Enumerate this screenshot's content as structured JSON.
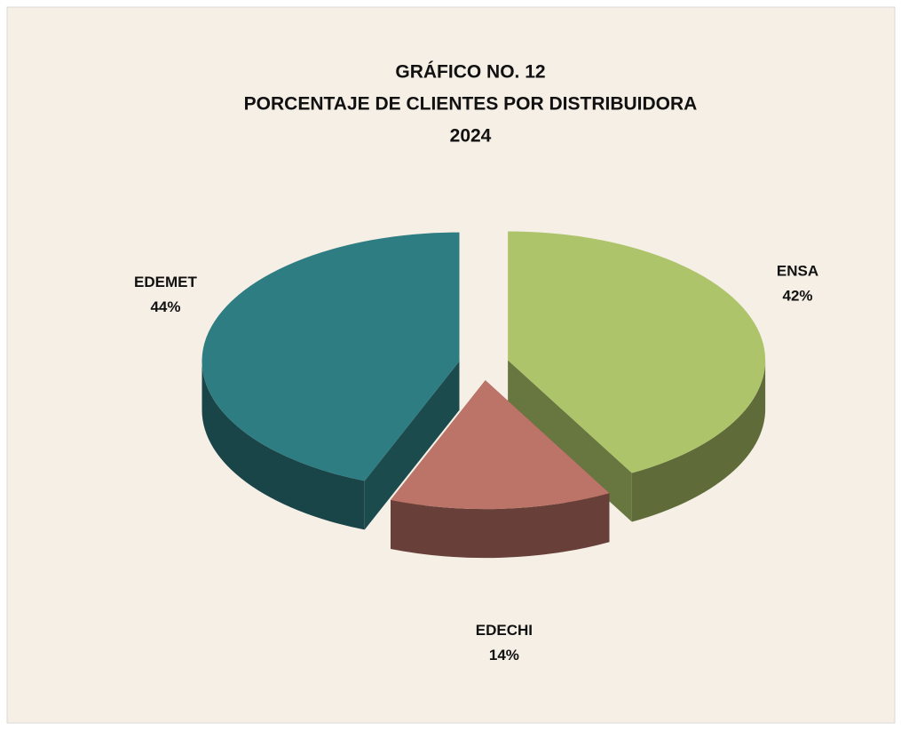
{
  "chart_data": {
    "type": "pie",
    "title": [
      "GRÁFICO NO. 12",
      "PORCENTAJE  DE CLIENTES POR DISTRIBUIDORA",
      "2024"
    ],
    "categories": [
      "ENSA",
      "EDECHI",
      "EDEMET"
    ],
    "values": [
      42,
      14,
      44
    ],
    "value_labels": [
      "42%",
      "14%",
      "44%"
    ],
    "colors": [
      "#adc46a",
      "#bd7468",
      "#2e7d82"
    ]
  }
}
